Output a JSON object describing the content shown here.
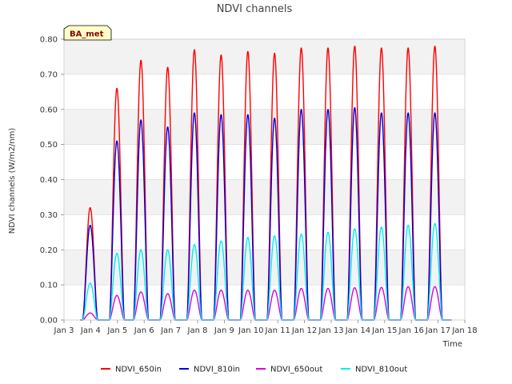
{
  "chart_data": {
    "type": "line",
    "title": "NDVI channels",
    "xlabel": "Time",
    "ylabel": "NDVI channels (W/m2/nm)",
    "badge": "BA_met",
    "ylim": [
      0,
      0.8
    ],
    "xlim": [
      3,
      18
    ],
    "y_ticks": [
      {
        "v": 0.0,
        "label": "0.00"
      },
      {
        "v": 0.1,
        "label": "0.10"
      },
      {
        "v": 0.2,
        "label": "0.20"
      },
      {
        "v": 0.3,
        "label": "0.30"
      },
      {
        "v": 0.4,
        "label": "0.40"
      },
      {
        "v": 0.5,
        "label": "0.50"
      },
      {
        "v": 0.6,
        "label": "0.60"
      },
      {
        "v": 0.7,
        "label": "0.70"
      },
      {
        "v": 0.8,
        "label": "0.80"
      }
    ],
    "x_ticks": [
      {
        "v": 3,
        "label": "Jan 3"
      },
      {
        "v": 4,
        "label": "Jan 4"
      },
      {
        "v": 5,
        "label": "Jan 5"
      },
      {
        "v": 6,
        "label": "Jan 6"
      },
      {
        "v": 7,
        "label": "Jan 7"
      },
      {
        "v": 8,
        "label": "Jan 8"
      },
      {
        "v": 9,
        "label": "Jan 9"
      },
      {
        "v": 10,
        "label": "Jan 10"
      },
      {
        "v": 11,
        "label": "Jan 11"
      },
      {
        "v": 12,
        "label": "Jan 12"
      },
      {
        "v": 13,
        "label": "Jan 13"
      },
      {
        "v": 14,
        "label": "Jan 14"
      },
      {
        "v": 15,
        "label": "Jan 15"
      },
      {
        "v": 16,
        "label": "Jan 16"
      },
      {
        "v": 17,
        "label": "Jan 17"
      },
      {
        "v": 18,
        "label": "Jan 18"
      }
    ],
    "day_centers": [
      3.98,
      4.98,
      5.88,
      6.88,
      7.88,
      8.88,
      9.88,
      10.88,
      11.88,
      12.88,
      13.88,
      14.88,
      15.88,
      16.88
    ],
    "day_halfwidth": 0.28,
    "series": [
      {
        "name": "NDVI_650in",
        "color": "#ff0000",
        "peaks": [
          0.32,
          0.66,
          0.74,
          0.72,
          0.77,
          0.755,
          0.765,
          0.76,
          0.775,
          0.775,
          0.78,
          0.775,
          0.775,
          0.78
        ]
      },
      {
        "name": "NDVI_810in",
        "color": "#0000dd",
        "peaks": [
          0.27,
          0.51,
          0.57,
          0.55,
          0.59,
          0.585,
          0.585,
          0.575,
          0.6,
          0.6,
          0.605,
          0.59,
          0.59,
          0.59
        ]
      },
      {
        "name": "NDVI_650out",
        "color": "#dd00dd",
        "peaks": [
          0.02,
          0.07,
          0.08,
          0.075,
          0.085,
          0.085,
          0.085,
          0.085,
          0.09,
          0.09,
          0.092,
          0.093,
          0.095,
          0.095
        ]
      },
      {
        "name": "NDVI_810out",
        "color": "#00eeee",
        "peaks": [
          0.105,
          0.19,
          0.2,
          0.2,
          0.215,
          0.225,
          0.235,
          0.24,
          0.245,
          0.25,
          0.26,
          0.265,
          0.27,
          0.275
        ]
      }
    ]
  }
}
